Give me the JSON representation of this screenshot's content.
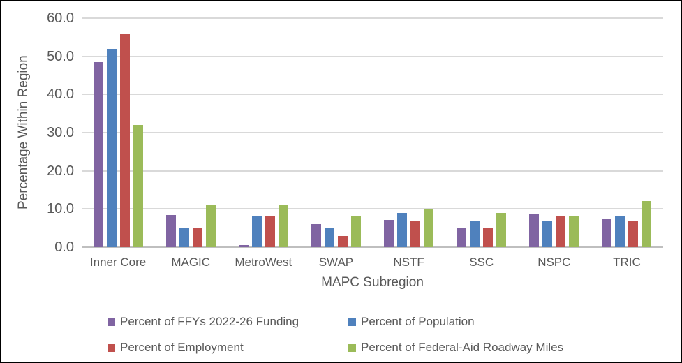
{
  "figure": {
    "background": "#FFFFFF",
    "border_color": "#000000",
    "text_color": "#595959",
    "gridline_color": "#D9D9D9",
    "axis_line_color": "#BFBFBF"
  },
  "chart_data": {
    "type": "bar",
    "title": "",
    "xlabel": "MAPC Subregion",
    "ylabel": "Percentage Within Region",
    "ylim": [
      0,
      60
    ],
    "ytick_step": 10,
    "ytick_labels": [
      "0.0",
      "10.0",
      "20.0",
      "30.0",
      "40.0",
      "50.0",
      "60.0"
    ],
    "grid": true,
    "legend_position": "bottom",
    "categories": [
      "Inner Core",
      "MAGIC",
      "MetroWest",
      "SWAP",
      "NSTF",
      "SSC",
      "NSPC",
      "TRIC"
    ],
    "series": [
      {
        "name": "Percent of FFYs 2022-26 Funding",
        "color": "#8064A2",
        "values": [
          48.5,
          8.5,
          0.6,
          6.0,
          7.2,
          5.0,
          8.8,
          7.3
        ]
      },
      {
        "name": "Percent of Population",
        "color": "#4F81BD",
        "values": [
          52.0,
          5.0,
          8.0,
          5.0,
          9.0,
          7.0,
          7.0,
          8.0
        ]
      },
      {
        "name": "Percent of Employment",
        "color": "#C0504D",
        "values": [
          56.0,
          5.0,
          8.0,
          3.0,
          7.0,
          5.0,
          8.0,
          7.0
        ]
      },
      {
        "name": "Percent of Federal-Aid Roadway Miles",
        "color": "#9BBB59",
        "values": [
          32.0,
          11.0,
          11.0,
          8.0,
          10.0,
          9.0,
          8.0,
          12.0
        ]
      }
    ]
  }
}
